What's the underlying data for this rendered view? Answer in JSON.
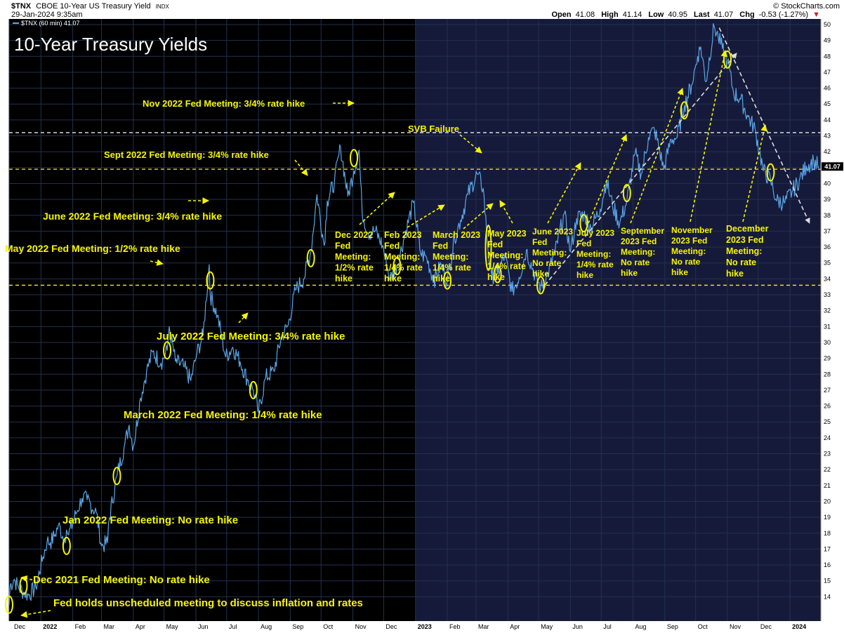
{
  "header": {
    "symbol": "$TNX",
    "name": "CBOE 10-Year US Treasury Yield",
    "exchange": "INDX",
    "datetime": "29-Jan-2024 9:35am",
    "legend_entry": "$TNX (60 min) 41.07",
    "brand": "© StockCharts.com",
    "open_label": "Open",
    "open": "41.08",
    "high_label": "High",
    "high": "41.14",
    "low_label": "Low",
    "low": "40.95",
    "last_label": "Last",
    "last": "41.07",
    "chg_label": "Chg",
    "chg": "-0.53 (-1.27%)",
    "chg_arrow": "▼"
  },
  "colors": {
    "background": "#000000",
    "shaded_2023": "#161a3a",
    "price_line": "#5aa6e8",
    "annotation": "#f5f500",
    "grid": "#22304f",
    "axis_panel": "#ffffff",
    "last_badge": "#000000"
  },
  "chart_data": {
    "type": "line",
    "title": "10-Year Treasury Yields",
    "series": [
      {
        "name": "$TNX (60 min)",
        "x": [
          "2021-12-01",
          "2021-12-02",
          "2021-12-06",
          "2021-12-10",
          "2021-12-15",
          "2021-12-20",
          "2021-12-27",
          "2022-01-03",
          "2022-01-07",
          "2022-01-10",
          "2022-01-14",
          "2022-01-18",
          "2022-01-24",
          "2022-01-26",
          "2022-01-28",
          "2022-02-04",
          "2022-02-10",
          "2022-02-15",
          "2022-02-24",
          "2022-03-01",
          "2022-03-07",
          "2022-03-08",
          "2022-03-16",
          "2022-03-23",
          "2022-03-28",
          "2022-04-01",
          "2022-04-08",
          "2022-04-14",
          "2022-04-20",
          "2022-04-28",
          "2022-05-04",
          "2022-05-06",
          "2022-05-12",
          "2022-05-20",
          "2022-05-27",
          "2022-06-02",
          "2022-06-08",
          "2022-06-14",
          "2022-06-15",
          "2022-06-22",
          "2022-06-30",
          "2022-07-07",
          "2022-07-14",
          "2022-07-21",
          "2022-07-27",
          "2022-08-01",
          "2022-08-08",
          "2022-08-16",
          "2022-08-23",
          "2022-08-30",
          "2022-09-06",
          "2022-09-14",
          "2022-09-21",
          "2022-09-27",
          "2022-10-04",
          "2022-10-07",
          "2022-10-14",
          "2022-10-20",
          "2022-10-27",
          "2022-11-02",
          "2022-11-07",
          "2022-11-10",
          "2022-11-16",
          "2022-11-23",
          "2022-11-30",
          "2022-12-07",
          "2022-12-14",
          "2022-12-21",
          "2022-12-30",
          "2023-01-06",
          "2023-01-12",
          "2023-01-19",
          "2023-01-26",
          "2023-02-01",
          "2023-02-08",
          "2023-02-14",
          "2023-02-21",
          "2023-03-02",
          "2023-03-08",
          "2023-03-13",
          "2023-03-16",
          "2023-03-22",
          "2023-03-29",
          "2023-04-05",
          "2023-04-12",
          "2023-04-19",
          "2023-04-26",
          "2023-05-03",
          "2023-05-10",
          "2023-05-17",
          "2023-05-26",
          "2023-06-01",
          "2023-06-07",
          "2023-06-14",
          "2023-06-21",
          "2023-06-30",
          "2023-07-06",
          "2023-07-12",
          "2023-07-19",
          "2023-07-26",
          "2023-08-03",
          "2023-08-09",
          "2023-08-16",
          "2023-08-22",
          "2023-08-31",
          "2023-09-07",
          "2023-09-13",
          "2023-09-20",
          "2023-09-27",
          "2023-10-03",
          "2023-10-06",
          "2023-10-11",
          "2023-10-19",
          "2023-10-23",
          "2023-10-27",
          "2023-11-01",
          "2023-11-07",
          "2023-11-14",
          "2023-11-21",
          "2023-11-28",
          "2023-12-06",
          "2023-12-13",
          "2023-12-19",
          "2023-12-27",
          "2024-01-03",
          "2024-01-10",
          "2024-01-17",
          "2024-01-24",
          "2024-01-29"
        ],
        "y": [
          13.5,
          14.7,
          15.1,
          14.6,
          14.3,
          14.1,
          14.6,
          16.5,
          17.5,
          17.4,
          17.8,
          18.5,
          17.6,
          18.2,
          17.9,
          19.2,
          20.2,
          20.1,
          19.3,
          17.2,
          17.4,
          18.7,
          21.6,
          23.4,
          24.8,
          23.4,
          26.5,
          28.2,
          29.4,
          28.7,
          29.5,
          31.0,
          28.8,
          28.5,
          27.6,
          29.3,
          30.5,
          34.9,
          33.0,
          31.7,
          29.1,
          29.7,
          28.8,
          27.7,
          27.0,
          25.6,
          27.8,
          28.2,
          30.3,
          31.1,
          33.3,
          34.0,
          35.7,
          39.3,
          36.1,
          38.9,
          40.1,
          42.3,
          39.2,
          40.8,
          42.1,
          38.2,
          36.9,
          37.0,
          36.1,
          34.0,
          34.8,
          36.6,
          38.8,
          35.6,
          35.3,
          33.9,
          34.9,
          33.9,
          36.6,
          37.7,
          39.3,
          40.6,
          39.7,
          35.6,
          34.2,
          34.3,
          35.5,
          33.2,
          34.1,
          35.8,
          34.5,
          33.4,
          34.3,
          35.7,
          38.1,
          35.7,
          37.8,
          38.1,
          37.2,
          38.4,
          40.2,
          38.6,
          37.5,
          38.9,
          41.9,
          40.6,
          42.9,
          43.4,
          40.9,
          42.8,
          42.9,
          44.9,
          46.2,
          48.0,
          48.6,
          46.4,
          49.9,
          49.2,
          48.5,
          47.7,
          45.7,
          45.3,
          44.2,
          43.4,
          40.8,
          40.2,
          38.9,
          38.8,
          39.5,
          40.2,
          41.1,
          41.4,
          41.07
        ]
      }
    ],
    "ylim": [
      13,
      50
    ],
    "y_ticks": [
      "14",
      "15",
      "16",
      "17",
      "18",
      "19",
      "20",
      "21",
      "22",
      "23",
      "24",
      "25",
      "26",
      "27",
      "28",
      "29",
      "30",
      "31",
      "32",
      "33",
      "34",
      "35",
      "36",
      "37",
      "38",
      "39",
      "40",
      "41",
      "42",
      "43",
      "44",
      "45",
      "46",
      "47",
      "48",
      "49",
      "50"
    ],
    "x_ticks": [
      "Dec",
      "2022",
      "Feb",
      "Mar",
      "Apr",
      "May",
      "Jun",
      "Jul",
      "Aug",
      "Sep",
      "Oct",
      "Nov",
      "Dec",
      "2023",
      "Feb",
      "Mar",
      "Apr",
      "May",
      "Jun",
      "Jul",
      "Aug",
      "Sep",
      "Oct",
      "Nov",
      "Dec",
      "2024"
    ],
    "x_range": [
      "2021-12-01",
      "2024-01-31"
    ],
    "last_value_label": "41.07",
    "horizontal_lines": [
      {
        "y": 43.2,
        "style": "dashed",
        "color": "#ffffff"
      },
      {
        "y": 40.9,
        "style": "dashed",
        "color": "#f5f500"
      },
      {
        "y": 33.6,
        "style": "dashed",
        "color": "#f5f500"
      }
    ],
    "trend_arrows": [
      {
        "from": [
          "2023-05-07",
          33.6
        ],
        "to": [
          "2023-11-10",
          48.2
        ],
        "color": "#dddddd"
      },
      {
        "from": [
          "2023-10-24",
          49.8
        ],
        "to": [
          "2024-01-20",
          37.5
        ],
        "color": "#dddddd"
      }
    ],
    "grid": true,
    "shaded_period": [
      "2023-01-01",
      "2024-01-31"
    ],
    "events": [
      {
        "text": "Fed holds unscheduled meeting to discuss inflation and rates",
        "date": "2021-12-01",
        "value": 13.5
      },
      {
        "text": "Dec 2021 Fed Meeting: No rate hike",
        "date": "2021-12-15",
        "value": 14.7
      },
      {
        "text": "Jan 2022 Fed Meeting: No rate hike",
        "date": "2022-01-26",
        "value": 17.2
      },
      {
        "text": "March 2022 Fed Meeting: 1/4% rate hike",
        "date": "2022-03-16",
        "value": 21.6
      },
      {
        "text": "May 2022 Fed Meeting: 1/2% rate hike",
        "date": "2022-05-04",
        "value": 29.5
      },
      {
        "text": "June 2022 Fed Meeting: 3/4% rate hike",
        "date": "2022-06-15",
        "value": 33.9
      },
      {
        "text": "July 2022 Fed Meeting: 3/4% rate hike",
        "date": "2022-07-27",
        "value": 27.0
      },
      {
        "text": "Sept 2022 Fed Meeting: 3/4% rate hike",
        "date": "2022-09-21",
        "value": 35.3
      },
      {
        "text": "Nov 2022 Fed Meeting: 3/4% rate hike",
        "date": "2022-11-02",
        "value": 41.6
      },
      {
        "text": "Dec 2022 Fed Meeting: 1/2% rate hike",
        "date": "2022-12-14",
        "value": 34.8
      },
      {
        "text": "Feb 2023 Fed Meeting: 1/4% rate hike",
        "date": "2023-02-01",
        "value": 33.9
      },
      {
        "text": "SVB Failure",
        "date": "2023-03-13",
        "value": 35.6
      },
      {
        "text": "March 2023 Fed Meeting: 1/4% rate hike",
        "date": "2023-03-22",
        "value": 34.3
      },
      {
        "text": "May 2023 Fed Meeting: 1/4% rate hike",
        "date": "2023-05-03",
        "value": 33.6
      },
      {
        "text": "June 2023 Fed Meeting: No rate hike",
        "date": "2023-06-14",
        "value": 37.5
      },
      {
        "text": "July 2023 Fed Meeting: 1/4% rate hike",
        "date": "2023-07-26",
        "value": 39.4
      },
      {
        "text": "September 2023 Fed Meeting: No rate hike",
        "date": "2023-09-20",
        "value": 44.6
      },
      {
        "text": "November 2023 Fed Meeting: No rate hike",
        "date": "2023-11-01",
        "value": 47.8
      },
      {
        "text": "December 2023 Fed Meeting: No rate hike",
        "date": "2023-12-13",
        "value": 40.7
      }
    ]
  },
  "labels": {
    "title": "10-Year Treasury Yields",
    "unscheduled": "Fed holds unscheduled meeting to discuss inflation and rates",
    "dec2021": "Dec 2021 Fed Meeting: No rate hike",
    "jan2022": "Jan 2022 Fed Meeting: No rate hike",
    "mar2022": "March 2022 Fed Meeting: 1/4% rate hike",
    "may2022": "May 2022 Fed Meeting: 1/2% rate hike",
    "jun2022": "June 2022 Fed Meeting: 3/4% rate hike",
    "jul2022": "July 2022 Fed Meeting: 3/4% rate hike",
    "sep2022": "Sept 2022 Fed Meeting: 3/4% rate hike",
    "nov2022": "Nov 2022 Fed Meeting: 3/4% rate hike",
    "svb": "SVB Failure",
    "dec2022": [
      "Dec 2022",
      "Fed",
      "Meeting:",
      "1/2% rate",
      "hike"
    ],
    "feb2023": [
      "Feb 2023",
      "Fed",
      "Meeting:",
      "1/4% rate",
      "hike"
    ],
    "mar2023": [
      "March 2023",
      "Fed",
      "Meeting:",
      "1/4% rate",
      "hike"
    ],
    "may2023": [
      "May 2023",
      "Fed",
      "Meeting:",
      "1/4% rate",
      "hike"
    ],
    "jun2023": [
      "June 2023",
      "Fed",
      "Meeting:",
      "No rate",
      "hike"
    ],
    "jul2023": [
      "July 2023",
      "Fed",
      "Meeting:",
      "1/4% rate",
      "hike"
    ],
    "sep2023": [
      "September",
      "2023 Fed",
      "Meeting:",
      "No rate",
      "hike"
    ],
    "nov2023": [
      "November",
      "2023 Fed",
      "Meeting:",
      "No rate",
      "hike"
    ],
    "dec2023": [
      "December",
      "2023 Fed",
      "Meeting:",
      "No rate",
      "hike"
    ]
  }
}
